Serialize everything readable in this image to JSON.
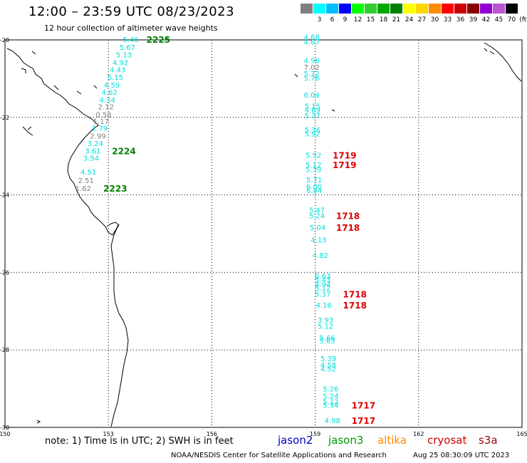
{
  "header": {
    "title": "12:00 – 23:59 UTC 08/23/2023",
    "subtitle": "12 hour collection of altimeter wave heights"
  },
  "scale": {
    "unit": "(ft)",
    "bins": [
      {
        "label": "",
        "color": "#808080"
      },
      {
        "label": "3",
        "color": "#00ffff"
      },
      {
        "label": "6",
        "color": "#00bfff"
      },
      {
        "label": "9",
        "color": "#0000ff"
      },
      {
        "label": "12",
        "color": "#00ff00"
      },
      {
        "label": "15",
        "color": "#32cd32"
      },
      {
        "label": "18",
        "color": "#00aa00"
      },
      {
        "label": "21",
        "color": "#008000"
      },
      {
        "label": "24",
        "color": "#ffff00"
      },
      {
        "label": "27",
        "color": "#ffd700"
      },
      {
        "label": "30",
        "color": "#ff8c00"
      },
      {
        "label": "33",
        "color": "#ff0000"
      },
      {
        "label": "36",
        "color": "#cc0000"
      },
      {
        "label": "39",
        "color": "#8b0000"
      },
      {
        "label": "42",
        "color": "#9400d3"
      },
      {
        "label": "45",
        "color": "#ba55d3"
      },
      {
        "label": "70",
        "color": "#000000"
      }
    ]
  },
  "axes": {
    "lat_labels": [
      "-20",
      "-22",
      "-24",
      "-26",
      "-28",
      "-30"
    ],
    "lon_labels": [
      "150",
      "153",
      "156",
      "159",
      "162",
      "165"
    ],
    "lat_range": [
      -30,
      -20
    ],
    "lon_range": [
      150,
      165
    ]
  },
  "colors": {
    "grid": "#000000",
    "coast": "#000000",
    "cyan": "#00dddd",
    "gray": "#808080",
    "time_green": "#008000",
    "time_red": "#dd0000"
  },
  "tracks": [
    {
      "values": [
        {
          "v": "5.46",
          "lat": -19.98,
          "lon": 153.65,
          "c": "cyan"
        },
        {
          "v": "5.67",
          "lat": -20.18,
          "lon": 153.55,
          "c": "cyan"
        },
        {
          "v": "5.13",
          "lat": -20.38,
          "lon": 153.45,
          "c": "cyan"
        },
        {
          "v": "4.92",
          "lat": -20.58,
          "lon": 153.35,
          "c": "cyan"
        },
        {
          "v": "4.43",
          "lat": -20.76,
          "lon": 153.27,
          "c": "cyan"
        },
        {
          "v": "5.15",
          "lat": -20.96,
          "lon": 153.2,
          "c": "cyan"
        },
        {
          "v": "4.59",
          "lat": -21.16,
          "lon": 153.1,
          "c": "cyan"
        },
        {
          "v": "4.62",
          "lat": -21.34,
          "lon": 153.03,
          "c": "cyan"
        },
        {
          "v": "4.34",
          "lat": -21.54,
          "lon": 152.97,
          "c": "cyan"
        },
        {
          "v": "2.12",
          "lat": -21.72,
          "lon": 152.93,
          "c": "gray"
        },
        {
          "v": "0.58",
          "lat": -21.92,
          "lon": 152.86,
          "c": "gray"
        },
        {
          "v": "1.17",
          "lat": -22.1,
          "lon": 152.79,
          "c": "gray"
        },
        {
          "v": "1.79",
          "lat": -22.27,
          "lon": 152.75,
          "c": "cyan"
        },
        {
          "v": "2.99",
          "lat": -22.47,
          "lon": 152.7,
          "c": "gray"
        },
        {
          "v": "3.24",
          "lat": -22.67,
          "lon": 152.62,
          "c": "cyan"
        },
        {
          "v": "3.61",
          "lat": -22.86,
          "lon": 152.55,
          "c": "cyan"
        },
        {
          "v": "3.54",
          "lat": -23.04,
          "lon": 152.5,
          "c": "cyan"
        },
        {
          "v": "4.51",
          "lat": -23.4,
          "lon": 152.42,
          "c": "cyan"
        },
        {
          "v": "2.51",
          "lat": -23.62,
          "lon": 152.35,
          "c": "gray"
        },
        {
          "v": "1.62",
          "lat": -23.82,
          "lon": 152.27,
          "c": "gray"
        }
      ],
      "times": [
        {
          "t": "2225",
          "lat": -19.98,
          "lon": 154.45,
          "c": "time_green"
        },
        {
          "t": "2224",
          "lat": -22.86,
          "lon": 153.45,
          "c": "time_green"
        },
        {
          "t": "2223",
          "lat": -23.82,
          "lon": 153.2,
          "c": "time_green"
        }
      ]
    },
    {
      "values": [
        {
          "v": "4.68",
          "lat": -19.92,
          "lon": 158.9,
          "c": "cyan"
        },
        {
          "v": "4.67",
          "lat": -20.05,
          "lon": 158.9,
          "c": "cyan"
        },
        {
          "v": "4.96",
          "lat": -20.52,
          "lon": 158.9,
          "c": "cyan"
        },
        {
          "v": "7.02",
          "lat": -20.7,
          "lon": 158.9,
          "c": "gray"
        },
        {
          "v": "5.72",
          "lat": -20.86,
          "lon": 158.9,
          "c": "cyan"
        },
        {
          "v": "5.76",
          "lat": -20.97,
          "lon": 158.9,
          "c": "cyan"
        },
        {
          "v": "6.04",
          "lat": -21.42,
          "lon": 158.9,
          "c": "cyan"
        },
        {
          "v": "5.15",
          "lat": -21.7,
          "lon": 158.92,
          "c": "cyan"
        },
        {
          "v": "4.89",
          "lat": -21.8,
          "lon": 158.92,
          "c": "cyan"
        },
        {
          "v": "5.37",
          "lat": -21.95,
          "lon": 158.92,
          "c": "cyan"
        },
        {
          "v": "5.36",
          "lat": -22.32,
          "lon": 158.92,
          "c": "cyan"
        },
        {
          "v": "5.92",
          "lat": -22.42,
          "lon": 158.92,
          "c": "cyan"
        },
        {
          "v": "5.52",
          "lat": -22.97,
          "lon": 158.95,
          "c": "cyan"
        },
        {
          "v": "5.12",
          "lat": -23.22,
          "lon": 158.95,
          "c": "cyan"
        },
        {
          "v": "5.39",
          "lat": -23.34,
          "lon": 158.95,
          "c": "cyan"
        },
        {
          "v": "5.71",
          "lat": -23.6,
          "lon": 158.97,
          "c": "cyan"
        },
        {
          "v": "6.00",
          "lat": -23.78,
          "lon": 158.97,
          "c": "cyan"
        },
        {
          "v": "6.84",
          "lat": -23.88,
          "lon": 158.97,
          "c": "cyan"
        },
        {
          "v": "5.47",
          "lat": -24.38,
          "lon": 159.05,
          "c": "cyan"
        },
        {
          "v": "5.24",
          "lat": -24.53,
          "lon": 159.05,
          "c": "cyan"
        },
        {
          "v": "5.04",
          "lat": -24.83,
          "lon": 159.07,
          "c": "cyan"
        },
        {
          "v": "4.13",
          "lat": -25.16,
          "lon": 159.1,
          "c": "cyan"
        },
        {
          "v": "4.82",
          "lat": -25.55,
          "lon": 159.15,
          "c": "cyan"
        },
        {
          "v": "5.63",
          "lat": -26.08,
          "lon": 159.22,
          "c": "cyan"
        },
        {
          "v": "5.43",
          "lat": -26.18,
          "lon": 159.22,
          "c": "cyan"
        },
        {
          "v": "4.94",
          "lat": -26.3,
          "lon": 159.22,
          "c": "cyan"
        },
        {
          "v": "5.12",
          "lat": -26.4,
          "lon": 159.22,
          "c": "cyan"
        },
        {
          "v": "5.37",
          "lat": -26.55,
          "lon": 159.22,
          "c": "cyan"
        },
        {
          "v": "4.16",
          "lat": -26.84,
          "lon": 159.25,
          "c": "cyan"
        },
        {
          "v": "3.93",
          "lat": -27.22,
          "lon": 159.3,
          "c": "cyan"
        },
        {
          "v": "5.12",
          "lat": -27.38,
          "lon": 159.3,
          "c": "cyan"
        },
        {
          "v": "5.66",
          "lat": -27.68,
          "lon": 159.35,
          "c": "cyan"
        },
        {
          "v": "5.63",
          "lat": -27.76,
          "lon": 159.35,
          "c": "cyan"
        },
        {
          "v": "5.39",
          "lat": -28.22,
          "lon": 159.38,
          "c": "cyan"
        },
        {
          "v": "4.58",
          "lat": -28.38,
          "lon": 159.38,
          "c": "cyan"
        },
        {
          "v": "4.52",
          "lat": -28.48,
          "lon": 159.38,
          "c": "cyan"
        },
        {
          "v": "5.26",
          "lat": -29.0,
          "lon": 159.45,
          "c": "cyan"
        },
        {
          "v": "5.24",
          "lat": -29.18,
          "lon": 159.45,
          "c": "cyan"
        },
        {
          "v": "5.12",
          "lat": -29.33,
          "lon": 159.45,
          "c": "cyan"
        },
        {
          "v": "5.34",
          "lat": -29.42,
          "lon": 159.45,
          "c": "cyan"
        },
        {
          "v": "4.98",
          "lat": -29.82,
          "lon": 159.5,
          "c": "cyan"
        }
      ],
      "times": [
        {
          "t": "1719",
          "lat": -22.97,
          "lon": 159.85,
          "c": "time_red"
        },
        {
          "t": "1719",
          "lat": -23.22,
          "lon": 159.85,
          "c": "time_red"
        },
        {
          "t": "1718",
          "lat": -24.53,
          "lon": 159.95,
          "c": "time_red"
        },
        {
          "t": "1718",
          "lat": -24.83,
          "lon": 159.95,
          "c": "time_red"
        },
        {
          "t": "1718",
          "lat": -26.55,
          "lon": 160.15,
          "c": "time_red"
        },
        {
          "t": "1718",
          "lat": -26.84,
          "lon": 160.15,
          "c": "time_red"
        },
        {
          "t": "1717",
          "lat": -29.42,
          "lon": 160.4,
          "c": "time_red"
        },
        {
          "t": "1717",
          "lat": -29.82,
          "lon": 160.4,
          "c": "time_red"
        }
      ]
    }
  ],
  "footer": {
    "note": "note: 1) Time is in UTC; 2) SWH is in feet",
    "legend": [
      {
        "name": "jason2",
        "color": "#0000cc"
      },
      {
        "name": "jason3",
        "color": "#009900"
      },
      {
        "name": "altika",
        "color": "#ff8800"
      },
      {
        "name": "cryosat",
        "color": "#cc0000"
      },
      {
        "name": "s3a",
        "color": "#990000"
      }
    ],
    "credit": "NOAA/NESDIS Center for Satellite Applications and Research",
    "timestamp": "Aug 25 08:30:09 UTC 2023"
  }
}
